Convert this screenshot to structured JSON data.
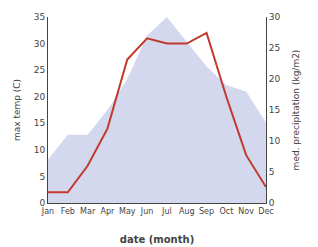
{
  "chart_data": {
    "type": "line",
    "categories": [
      "Jan",
      "Feb",
      "Mar",
      "Apr",
      "May",
      "Jun",
      "Jul",
      "Aug",
      "Sep",
      "Oct",
      "Nov",
      "Dec"
    ],
    "series": [
      {
        "name": "max temp (C)",
        "type": "line",
        "color": "#c0392b",
        "values": [
          2,
          2,
          7,
          14,
          27,
          31,
          30,
          30,
          32,
          20,
          9,
          3
        ]
      },
      {
        "name": "med. precipitation (kg/m2)",
        "type": "area",
        "axis": "y2",
        "color": "#b0b8e0",
        "values": [
          7,
          11,
          11,
          15,
          20,
          27,
          30,
          26,
          22,
          19,
          18,
          13
        ]
      }
    ],
    "xlabel": "date (month)",
    "ylabel": "max temp (C)",
    "y2label": "med. precipitation (kg/m2)",
    "ylim": [
      0,
      35
    ],
    "yticks": [
      0,
      5,
      10,
      15,
      20,
      25,
      30,
      35
    ],
    "y2lim": [
      0,
      30
    ],
    "y2ticks": [
      0,
      5,
      10,
      15,
      20,
      25,
      30
    ],
    "grid": false
  }
}
